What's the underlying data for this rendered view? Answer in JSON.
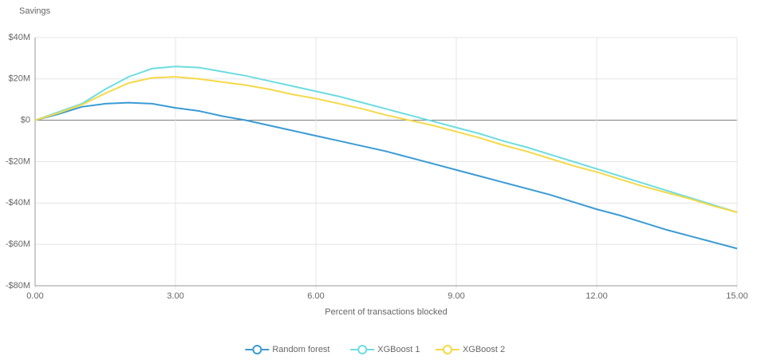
{
  "chart_data": {
    "type": "line",
    "y_label": "Savings",
    "x_label": "Percent of transactions blocked",
    "x": [
      0,
      0.5,
      1,
      1.5,
      2,
      2.5,
      3,
      3.5,
      4,
      4.5,
      5,
      5.5,
      6,
      6.5,
      7,
      7.5,
      8,
      8.5,
      9,
      9.5,
      10,
      10.5,
      11,
      11.5,
      12,
      12.5,
      13,
      13.5,
      14,
      14.5,
      15
    ],
    "series": [
      {
        "name": "Random forest",
        "color": "#3a9bd5",
        "values": [
          0,
          3,
          6.5,
          8,
          8.5,
          8,
          6,
          4.5,
          2,
          0,
          -2.5,
          -5,
          -7.5,
          -10,
          -12.5,
          -15,
          -18,
          -21,
          -24,
          -27,
          -30,
          -33,
          -36,
          -39.5,
          -43,
          -46,
          -49.5,
          -53,
          -56,
          -59,
          -62
        ]
      },
      {
        "name": "XGBoost 1",
        "color": "#6ddde0",
        "values": [
          0,
          4,
          8,
          15,
          21,
          25,
          26,
          25.5,
          23.5,
          21.5,
          19,
          16.5,
          14,
          11.5,
          8.5,
          5.5,
          2.5,
          -0.5,
          -3.5,
          -6.5,
          -10,
          -13,
          -16.5,
          -20,
          -23.5,
          -27,
          -30.5,
          -34,
          -37.5,
          -41,
          -44.5
        ]
      },
      {
        "name": "XGBoost 2",
        "color": "#f5d949",
        "values": [
          0,
          3.5,
          7.5,
          13,
          18,
          20.5,
          21,
          20,
          18.5,
          17,
          15,
          12.5,
          10.5,
          8,
          5.5,
          2.5,
          0,
          -2.5,
          -5.5,
          -8.5,
          -12,
          -15,
          -18.5,
          -22,
          -25,
          -28.5,
          -32,
          -35,
          -38,
          -41.5,
          -44.5
        ]
      }
    ],
    "xlim": [
      0,
      15
    ],
    "ylim": [
      -80,
      40
    ],
    "xticks": [
      {
        "value": 0,
        "label": "0.00"
      },
      {
        "value": 3,
        "label": "3.00"
      },
      {
        "value": 6,
        "label": "6.00"
      },
      {
        "value": 9,
        "label": "9.00"
      },
      {
        "value": 12,
        "label": "12.00"
      },
      {
        "value": 15,
        "label": "15.00"
      }
    ],
    "yticks": [
      {
        "value": -80,
        "label": "-$80M"
      },
      {
        "value": -60,
        "label": "-$60M"
      },
      {
        "value": -40,
        "label": "-$40M"
      },
      {
        "value": -20,
        "label": "-$20M"
      },
      {
        "value": 0,
        "label": "$0"
      },
      {
        "value": 20,
        "label": "$20M"
      },
      {
        "value": 40,
        "label": "$40M"
      }
    ],
    "grid": true,
    "legend": "bottom"
  }
}
